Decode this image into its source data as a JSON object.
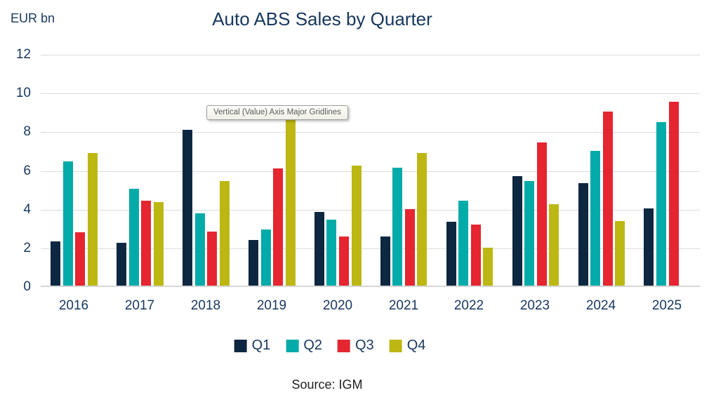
{
  "header": {
    "units_label": "EUR bn",
    "title": "Auto ABS Sales by Quarter"
  },
  "tooltip": {
    "text": "Vertical (Value) Axis Major Gridlines"
  },
  "source": {
    "text": "Source: IGM"
  },
  "colors": {
    "q1": "#0D2740",
    "q2": "#00ABA9",
    "q3": "#E52530",
    "q4": "#BDB714",
    "text_navy": "#17375E",
    "gridline": "#DCDCDC"
  },
  "chart_data": {
    "type": "bar",
    "title": "Auto ABS Sales by Quarter",
    "ylabel": "EUR bn",
    "xlabel": "",
    "ylim": [
      0,
      12
    ],
    "yticks": [
      0,
      2,
      4,
      6,
      8,
      10,
      12
    ],
    "grid": true,
    "legend_position": "bottom",
    "categories": [
      "2016",
      "2017",
      "2018",
      "2019",
      "2020",
      "2021",
      "2022",
      "2023",
      "2024",
      "2025"
    ],
    "series": [
      {
        "name": "Q1",
        "color": "#0D2740",
        "values": [
          2.3,
          2.2,
          8.05,
          2.35,
          3.8,
          2.55,
          3.3,
          5.65,
          5.3,
          4.0
        ]
      },
      {
        "name": "Q2",
        "color": "#00ABA9",
        "values": [
          6.4,
          5.0,
          3.75,
          2.9,
          3.4,
          6.1,
          4.4,
          5.4,
          6.95,
          8.45
        ]
      },
      {
        "name": "Q3",
        "color": "#E52530",
        "values": [
          2.75,
          4.4,
          2.8,
          6.05,
          2.55,
          3.95,
          3.15,
          7.4,
          9.0,
          9.5
        ]
      },
      {
        "name": "Q4",
        "color": "#BDB714",
        "values": [
          6.85,
          4.3,
          5.4,
          8.7,
          6.2,
          6.85,
          1.95,
          4.2,
          3.35,
          null
        ]
      }
    ],
    "annotations": [
      "Vertical (Value) Axis Major Gridlines tooltip shown over 2019 Q4 bar"
    ]
  }
}
